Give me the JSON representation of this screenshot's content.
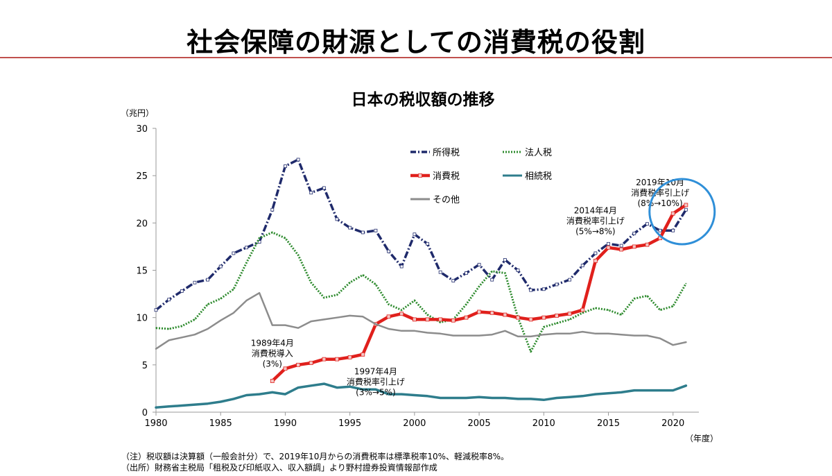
{
  "page": {
    "title": "社会保障の財源としての消費税の役割"
  },
  "footnotes": {
    "note": "（注）税収額は決算額（一般会計分）で、2019年10月からの消費税率は標準税率10%、軽減税率8%。",
    "source": "（出所）財務省主税局「租税及び印紙収入、収入額調」より野村證券投資情報部作成"
  },
  "chart_data": {
    "type": "line",
    "title": "日本の税収額の推移",
    "ylabel": "（兆円）",
    "xlabel": "（年度）",
    "ylim": [
      0,
      30
    ],
    "yticks": [
      0,
      5,
      10,
      15,
      20,
      25,
      30
    ],
    "xlim": [
      1980,
      2022
    ],
    "xticks": [
      1980,
      1985,
      1990,
      1995,
      2000,
      2005,
      2010,
      2015,
      2020
    ],
    "grid": false,
    "legend_position": "top-center",
    "x": [
      1980,
      1981,
      1982,
      1983,
      1984,
      1985,
      1986,
      1987,
      1988,
      1989,
      1990,
      1991,
      1992,
      1993,
      1994,
      1995,
      1996,
      1997,
      1998,
      1999,
      2000,
      2001,
      2002,
      2003,
      2004,
      2005,
      2006,
      2007,
      2008,
      2009,
      2010,
      2011,
      2012,
      2013,
      2014,
      2015,
      2016,
      2017,
      2018,
      2019,
      2020,
      2021
    ],
    "series": [
      {
        "name": "所得税",
        "color": "#1f2a6b",
        "style": "dashdot",
        "values": [
          10.8,
          11.9,
          12.8,
          13.7,
          14.0,
          15.4,
          16.8,
          17.4,
          18.0,
          21.4,
          26.0,
          26.7,
          23.2,
          23.7,
          20.4,
          19.5,
          19.0,
          19.2,
          17.0,
          15.4,
          18.8,
          17.8,
          14.8,
          13.9,
          14.7,
          15.6,
          14.0,
          16.1,
          15.0,
          12.9,
          13.0,
          13.5,
          14.0,
          15.5,
          16.8,
          17.8,
          17.6,
          18.9,
          19.9,
          19.2,
          19.2,
          21.4
        ]
      },
      {
        "name": "法人税",
        "color": "#2e8b2e",
        "style": "dotted",
        "values": [
          8.9,
          8.8,
          9.1,
          9.8,
          11.4,
          12.0,
          13.0,
          15.8,
          18.4,
          19.0,
          18.4,
          16.6,
          13.7,
          12.1,
          12.4,
          13.7,
          14.5,
          13.5,
          11.4,
          10.8,
          11.8,
          10.3,
          9.5,
          9.8,
          11.4,
          13.3,
          14.9,
          14.7,
          10.0,
          6.4,
          9.0,
          9.4,
          9.8,
          10.5,
          11.0,
          10.8,
          10.3,
          12.0,
          12.3,
          10.8,
          11.2,
          13.6
        ]
      },
      {
        "name": "消費税",
        "color": "#e0201c",
        "style": "solid-markers",
        "values": [
          null,
          null,
          null,
          null,
          null,
          null,
          null,
          null,
          null,
          3.3,
          4.6,
          5.0,
          5.2,
          5.6,
          5.6,
          5.8,
          6.1,
          9.3,
          10.1,
          10.4,
          9.8,
          9.8,
          9.8,
          9.7,
          10.0,
          10.6,
          10.5,
          10.3,
          10.0,
          9.8,
          10.0,
          10.2,
          10.4,
          10.8,
          16.0,
          17.4,
          17.2,
          17.5,
          17.7,
          18.4,
          21.0,
          21.9
        ]
      },
      {
        "name": "相続税",
        "color": "#2e7d8c",
        "style": "solid",
        "values": [
          0.5,
          0.6,
          0.7,
          0.8,
          0.9,
          1.1,
          1.4,
          1.8,
          1.9,
          2.1,
          1.9,
          2.6,
          2.8,
          3.0,
          2.6,
          2.7,
          2.4,
          2.4,
          1.9,
          1.9,
          1.8,
          1.7,
          1.5,
          1.5,
          1.5,
          1.6,
          1.5,
          1.5,
          1.4,
          1.4,
          1.3,
          1.5,
          1.6,
          1.7,
          1.9,
          2.0,
          2.1,
          2.3,
          2.3,
          2.3,
          2.3,
          2.8
        ]
      },
      {
        "name": "その他",
        "color": "#8c8c8c",
        "style": "solid",
        "values": [
          6.7,
          7.6,
          7.9,
          8.2,
          8.8,
          9.7,
          10.5,
          11.8,
          12.6,
          9.2,
          9.2,
          8.9,
          9.6,
          9.8,
          10.0,
          10.2,
          10.1,
          9.3,
          8.8,
          8.6,
          8.6,
          8.4,
          8.3,
          8.1,
          8.1,
          8.1,
          8.2,
          8.6,
          8.0,
          8.0,
          8.2,
          8.3,
          8.3,
          8.5,
          8.3,
          8.3,
          8.2,
          8.1,
          8.1,
          7.8,
          7.1,
          7.4
        ]
      }
    ],
    "annotations": [
      {
        "lines": [
          "1989年4月",
          "消費税導入",
          "(3%)"
        ],
        "year": 1989,
        "value": 7.0
      },
      {
        "lines": [
          "1997年4月",
          "消費税率引上げ",
          "(3%→5%)"
        ],
        "year": 1997,
        "value": 4.0
      },
      {
        "lines": [
          "2014年4月",
          "消費税率引上げ",
          "(5%→8%)"
        ],
        "year": 2014,
        "value": 21.0
      },
      {
        "lines": [
          "2019年10月",
          "消費税率引上げ",
          "(8%→10%)"
        ],
        "year": 2019,
        "value": 24.0
      }
    ],
    "highlight": {
      "shape": "circle",
      "color": "#2f8fd8",
      "year": 2020.7,
      "value": 21.2
    }
  }
}
